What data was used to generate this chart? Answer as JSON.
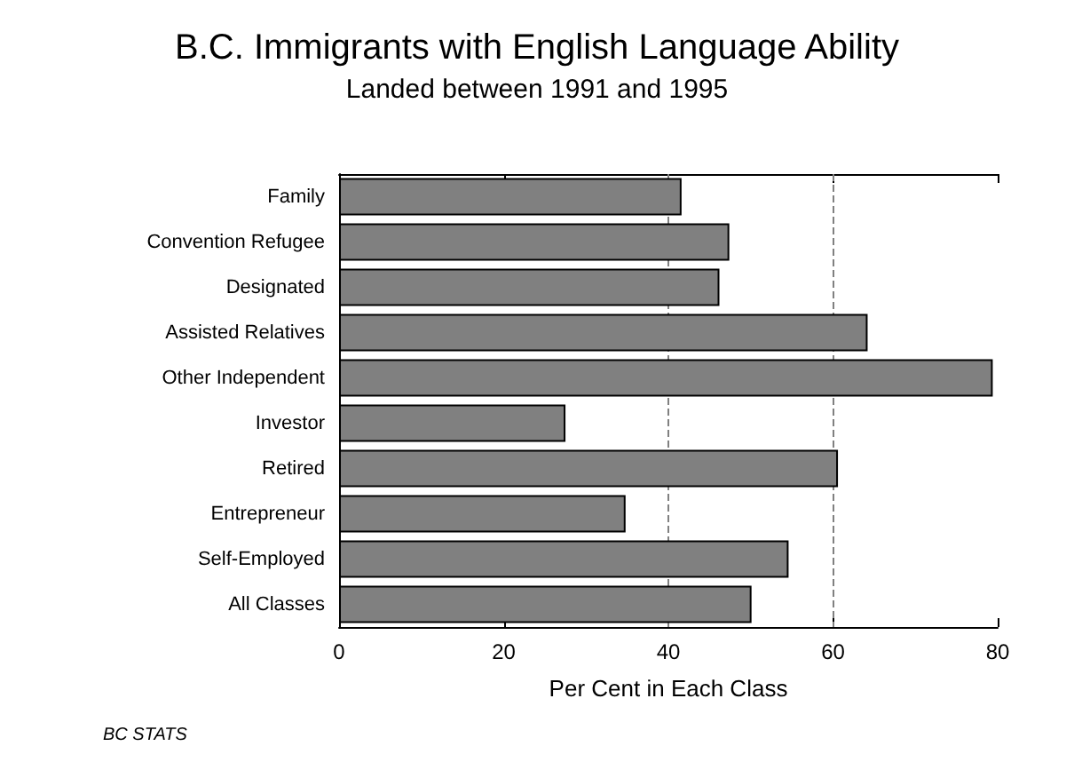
{
  "chart_data": {
    "type": "bar",
    "orientation": "horizontal",
    "title": "B.C. Immigrants with English Language Ability",
    "subtitle": "Landed between 1991 and 1995",
    "xlabel": "Per Cent in Each Class",
    "categories": [
      "Family",
      "Convention Refugee",
      "Designated",
      "Assisted Relatives",
      "Other Independent",
      "Investor",
      "Retired",
      "Entrepreneur",
      "Self-Employed",
      "All Classes"
    ],
    "values": [
      41.6,
      47.4,
      46.2,
      64.2,
      79.4,
      27.5,
      60.6,
      34.8,
      54.6,
      50.1
    ],
    "color": "#808080",
    "xlim": [
      0,
      80
    ],
    "xticks": [
      0,
      20,
      40,
      60,
      80
    ],
    "grid": false,
    "ref_lines": [
      {
        "axis": "x",
        "value": 40,
        "line_style": "dashed",
        "color": "#808080"
      },
      {
        "axis": "x",
        "value": 60,
        "line_style": "dashed",
        "color": "#808080"
      }
    ],
    "annotations": [
      "BC STATS"
    ]
  }
}
